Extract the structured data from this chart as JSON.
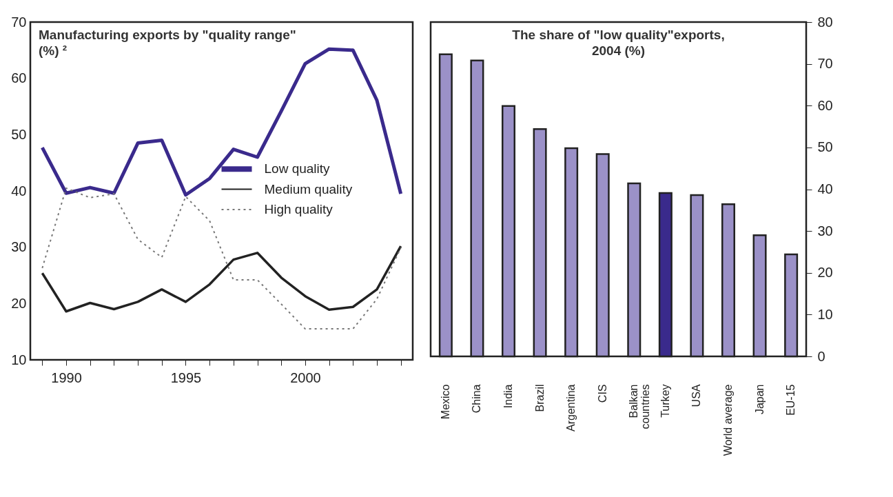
{
  "chart_data": [
    {
      "type": "line",
      "title": "Manufacturing exports by \"quality range\" (%) ²",
      "x": [
        1989,
        1990,
        1991,
        1992,
        1993,
        1994,
        1995,
        1996,
        1997,
        1998,
        1999,
        2000,
        2001,
        2002,
        2003,
        2004
      ],
      "series": [
        {
          "name": "Low quality",
          "color": "#3a2a8c",
          "line_style": "solid",
          "values": [
            47.7,
            39.6,
            40.6,
            39.6,
            48.5,
            49.0,
            39.3,
            42.2,
            47.4,
            46.0,
            54.2,
            62.6,
            65.2,
            65.0,
            56.1,
            39.5
          ]
        },
        {
          "name": "Medium quality",
          "color": "#222222",
          "line_style": "solid",
          "values": [
            25.4,
            18.6,
            20.1,
            19.0,
            20.3,
            22.5,
            20.3,
            23.4,
            27.8,
            29.0,
            24.6,
            21.3,
            18.9,
            19.4,
            22.5,
            30.2
          ]
        },
        {
          "name": "High quality",
          "color": "#777777",
          "line_style": "dotted",
          "values": [
            26.3,
            40.5,
            38.8,
            39.5,
            31.4,
            28.2,
            39.0,
            34.7,
            24.2,
            24.2,
            19.9,
            15.5,
            15.5,
            15.5,
            20.8,
            29.9
          ]
        }
      ],
      "xlim": [
        1988.5,
        2004.5
      ],
      "xticks": [
        {
          "value": 1989,
          "label": null
        },
        1990,
        {
          "value": 1991,
          "label": null
        },
        {
          "value": 1992,
          "label": null
        },
        {
          "value": 1993,
          "label": null
        },
        {
          "value": 1994,
          "label": null
        },
        1995,
        {
          "value": 1996,
          "label": null
        },
        {
          "value": 1997,
          "label": null
        },
        {
          "value": 1998,
          "label": null
        },
        {
          "value": 1999,
          "label": null
        },
        2000,
        {
          "value": 2001,
          "label": null
        },
        {
          "value": 2002,
          "label": null
        },
        {
          "value": 2003,
          "label": null
        },
        {
          "value": 2004,
          "label": null
        }
      ],
      "ylim": [
        10,
        70
      ],
      "yticks": [
        10,
        20,
        30,
        40,
        50,
        60,
        70
      ],
      "grid": false,
      "legend": "right",
      "marker": "none"
    },
    {
      "type": "bar",
      "title": "The share of \"low quality\"exports, 2004 (%)",
      "categories": [
        "Mexico",
        "China",
        "India",
        "Brazil",
        "Argentina",
        "CIS",
        "Balkan countries",
        "Turkey",
        "USA",
        "World average",
        "Japan",
        "EU-15"
      ],
      "values": [
        72.3,
        70.8,
        59.9,
        54.4,
        49.8,
        48.4,
        41.4,
        39.1,
        38.6,
        36.4,
        29.0,
        24.4
      ],
      "colors": [
        "#9b91c8",
        "#9b91c8",
        "#9b91c8",
        "#9b91c8",
        "#9b91c8",
        "#9b91c8",
        "#9b91c8",
        "#3a2a8c",
        "#9b91c8",
        "#9b91c8",
        "#9b91c8",
        "#9b91c8"
      ],
      "ylim": [
        0,
        80
      ],
      "yticks": [
        0,
        10,
        20,
        30,
        40,
        50,
        60,
        70,
        80
      ],
      "grid": false,
      "legend": false
    }
  ]
}
